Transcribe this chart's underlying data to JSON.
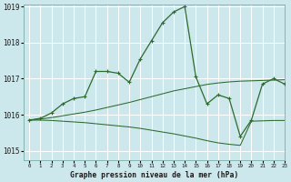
{
  "background_color": "#cce8ec",
  "grid_color": "#b0d4d8",
  "line_color": "#2d6a2d",
  "xlabel": "Graphe pression niveau de la mer (hPa)",
  "xlim": [
    -0.5,
    23
  ],
  "ylim": [
    1014.75,
    1019.05
  ],
  "yticks": [
    1015,
    1016,
    1017,
    1018,
    1019
  ],
  "xticks": [
    0,
    1,
    2,
    3,
    4,
    5,
    6,
    7,
    8,
    9,
    10,
    11,
    12,
    13,
    14,
    15,
    16,
    17,
    18,
    19,
    20,
    21,
    22,
    23
  ],
  "series": [
    {
      "x": [
        0,
        1,
        2,
        3,
        4,
        5,
        6,
        7,
        8,
        9,
        10,
        11,
        12,
        13,
        14,
        15,
        16,
        17,
        18,
        19,
        20,
        21,
        22,
        23
      ],
      "y": [
        1015.85,
        1015.9,
        1016.05,
        1016.3,
        1016.45,
        1016.5,
        1017.2,
        1017.2,
        1017.15,
        1016.9,
        1017.55,
        1018.05,
        1018.55,
        1018.85,
        1019.0,
        1017.05,
        1016.3,
        1016.55,
        1016.45,
        1015.4,
        1015.85,
        1016.85,
        1017.0,
        1016.85
      ],
      "marker": "+"
    },
    {
      "x": [
        0,
        1,
        2,
        3,
        4,
        5,
        6,
        7,
        8,
        9,
        10,
        11,
        12,
        13,
        14,
        15,
        16,
        17,
        18,
        19,
        20,
        21,
        22,
        23
      ],
      "y": [
        1015.85,
        1015.88,
        1015.92,
        1015.97,
        1016.02,
        1016.07,
        1016.13,
        1016.2,
        1016.27,
        1016.34,
        1016.42,
        1016.5,
        1016.58,
        1016.66,
        1016.72,
        1016.78,
        1016.84,
        1016.88,
        1016.91,
        1016.93,
        1016.94,
        1016.95,
        1016.96,
        1016.97
      ],
      "marker": null
    },
    {
      "x": [
        0,
        1,
        2,
        3,
        4,
        5,
        6,
        7,
        8,
        9,
        10,
        11,
        12,
        13,
        14,
        15,
        16,
        17,
        18,
        19,
        20,
        21,
        22,
        23
      ],
      "y": [
        1015.85,
        1015.85,
        1015.84,
        1015.82,
        1015.8,
        1015.78,
        1015.75,
        1015.72,
        1015.69,
        1015.66,
        1015.62,
        1015.57,
        1015.52,
        1015.47,
        1015.41,
        1015.35,
        1015.28,
        1015.22,
        1015.18,
        1015.15,
        1015.82,
        1015.83,
        1015.84,
        1015.84
      ],
      "marker": null
    }
  ]
}
